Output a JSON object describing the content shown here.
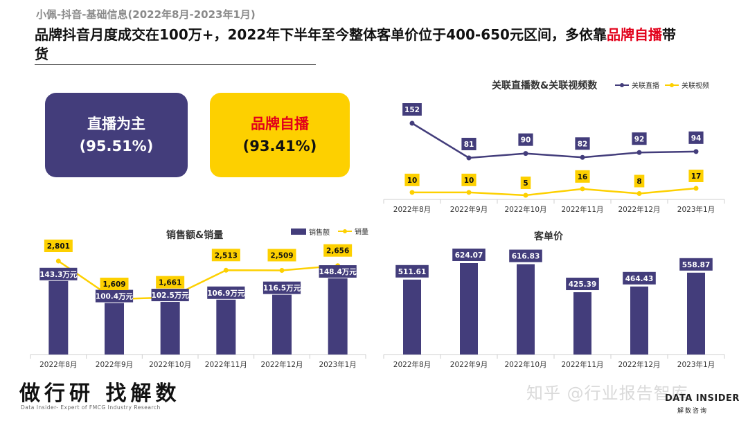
{
  "header": {
    "subtitle": "小佩-抖音-基础信息(2022年8月-2023年1月)",
    "headline_part1": "品牌抖音月度成交在100万+，2022年下半年至今整体客单价位于400-650元区间，多依靠",
    "headline_highlight": "品牌自播",
    "headline_part2": "带货"
  },
  "boxes": {
    "live": {
      "title": "直播为主",
      "value": "(95.51%)"
    },
    "self": {
      "title": "品牌自播",
      "value": "(93.41%)"
    }
  },
  "colors": {
    "purple": "#433d7b",
    "yellow": "#fdd000",
    "red": "#e2001a"
  },
  "chart_data": [
    {
      "id": "live-video",
      "type": "line",
      "title": "关联直播数&关联视频数",
      "categories": [
        "2022年8月",
        "2022年9月",
        "2022年10月",
        "2022年11月",
        "2022年12月",
        "2023年1月"
      ],
      "series": [
        {
          "name": "关联直播",
          "values": [
            152,
            81,
            90,
            82,
            92,
            94
          ],
          "color": "#433d7b"
        },
        {
          "name": "关联视频",
          "values": [
            10,
            10,
            5,
            16,
            8,
            17
          ],
          "color": "#fdd000"
        }
      ]
    },
    {
      "id": "sales",
      "type": "bar",
      "title": "销售额&销量",
      "categories": [
        "2022年8月",
        "2022年9月",
        "2022年10月",
        "2022年11月",
        "2022年12月",
        "2023年1月"
      ],
      "series": [
        {
          "name": "销售额",
          "values": [
            143.3,
            100.4,
            102.5,
            106.9,
            116.5,
            148.4
          ],
          "labels": [
            "143.3万元",
            "100.4万元",
            "102.5万元",
            "106.9万元",
            "116.5万元",
            "148.4万元"
          ],
          "color": "#433d7b"
        },
        {
          "name": "销量",
          "values": [
            2801,
            1609,
            1661,
            2513,
            2509,
            2656
          ],
          "labels": [
            "2,801",
            "1,609",
            "1,661",
            "2,513",
            "2,509",
            "2,656"
          ],
          "color": "#fdd000"
        }
      ]
    },
    {
      "id": "aov",
      "type": "bar",
      "title": "客单价",
      "categories": [
        "2022年8月",
        "2022年9月",
        "2022年10月",
        "2022年11月",
        "2022年12月",
        "2023年1月"
      ],
      "values": [
        511.61,
        624.07,
        616.83,
        425.39,
        464.43,
        558.87
      ],
      "labels": [
        "511.61",
        "624.07",
        "616.83",
        "425.39",
        "464.43",
        "558.87"
      ],
      "color": "#433d7b"
    }
  ],
  "footer": {
    "logo": "做行研 找解数",
    "tagline": "Data Insider- Expert of FMCG Industry Research",
    "watermark": "知乎 @行业报告智库",
    "brand": "DATA INSIDER",
    "brand_sub": "解数咨询"
  }
}
